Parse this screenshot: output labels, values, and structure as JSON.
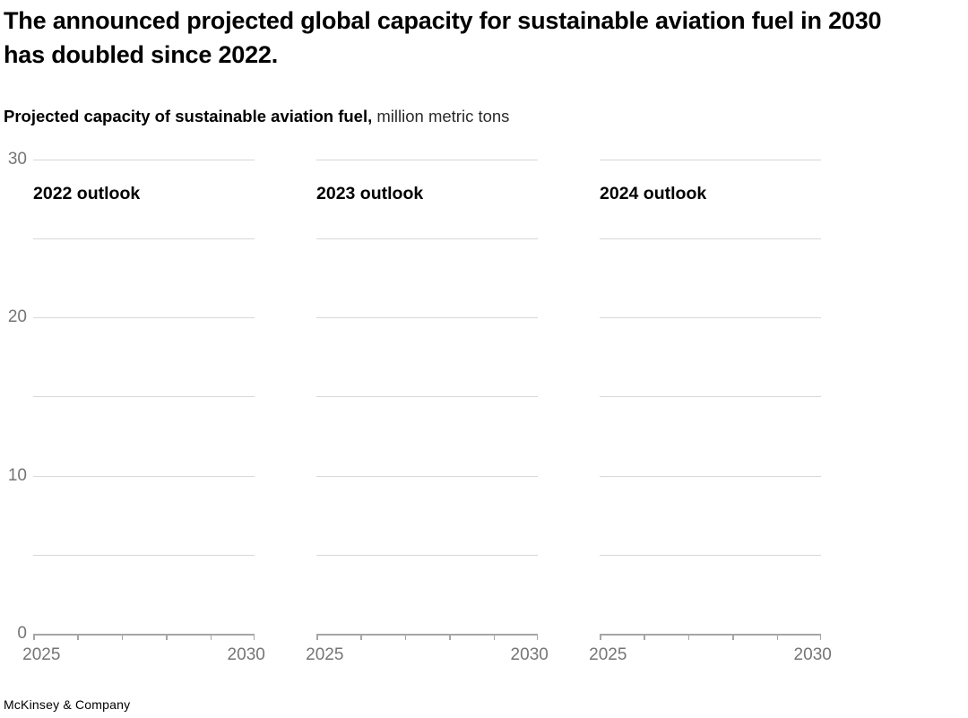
{
  "header": {
    "title": "The announced projected global capacity for sustainable aviation fuel in 2030 has doubled since 2022.",
    "subtitle_bold": "Projected capacity of sustainable aviation fuel,",
    "subtitle_regular": " million metric tons"
  },
  "footer": {
    "attribution": "McKinsey & Company"
  },
  "colors": {
    "title_text": "#000000",
    "axis_label": "#757575",
    "gridline": "#d8d8d8",
    "axis_line": "#a6a6a6",
    "background": "#ffffff"
  },
  "chart_data": {
    "type": "line",
    "layout": "small_multiples",
    "title": "Projected capacity of sustainable aviation fuel",
    "units": "million metric tons",
    "panels": [
      {
        "label": "2022 outlook",
        "series": []
      },
      {
        "label": "2023 outlook",
        "series": []
      },
      {
        "label": "2024 outlook",
        "series": []
      }
    ],
    "x": {
      "min": 2025,
      "max": 2030,
      "ticks": [
        2025,
        2026,
        2027,
        2028,
        2029,
        2030
      ],
      "tick_labels": [
        "2025",
        "2030"
      ]
    },
    "y": {
      "min": 0,
      "max": 30,
      "gridline_step": 5,
      "labeled_ticks": [
        0,
        10,
        20,
        30
      ]
    },
    "grid": true,
    "legend": false,
    "visible_data_note": "All three panels are empty in the screenshot: axes and gridlines only, no series lines drawn"
  }
}
